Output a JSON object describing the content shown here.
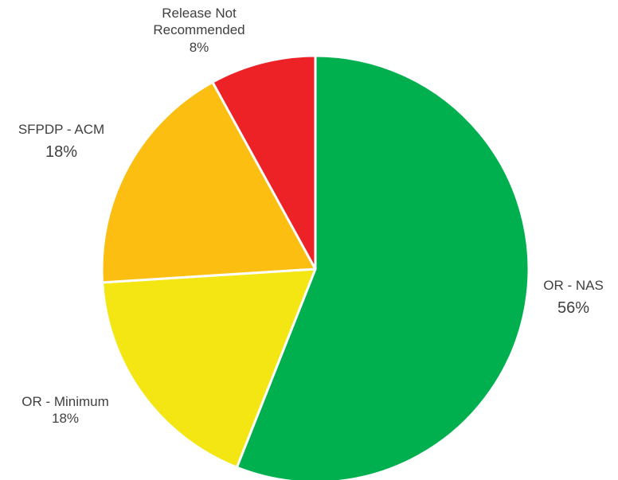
{
  "chart_data": {
    "type": "pie",
    "title": "",
    "slices": [
      {
        "label": "OR - NAS",
        "value": 56,
        "display": "56%",
        "color": "#00b04f"
      },
      {
        "label": "OR - Minimum",
        "value": 18,
        "display": "18%",
        "color": "#f3e613"
      },
      {
        "label": "SFPDP - ACM",
        "value": 18,
        "display": "18%",
        "color": "#fbbe11"
      },
      {
        "label": "Release Not Recommended",
        "label_lines": [
          "Release Not",
          "Recommended"
        ],
        "value": 8,
        "display": "8%",
        "color": "#ec2227"
      }
    ],
    "start": "12 o'clock",
    "direction": "clockwise",
    "legend": "none"
  }
}
